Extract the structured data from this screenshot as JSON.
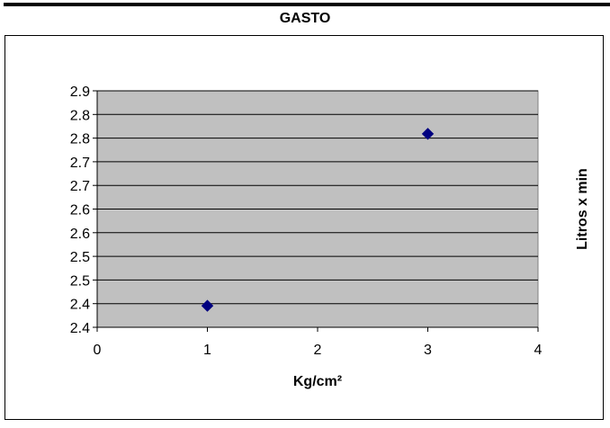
{
  "chart_data": {
    "type": "scatter",
    "title": "GASTO",
    "xlabel": "Kg/cm²",
    "ylabel": "Litros x min",
    "xlim": [
      0,
      4
    ],
    "ylim": [
      2.35,
      2.9
    ],
    "x_ticks": [
      "0",
      "1",
      "2",
      "3",
      "4"
    ],
    "y_ticks": [
      "2.4",
      "2.4",
      "2.5",
      "2.5",
      "2.6",
      "2.6",
      "2.7",
      "2.7",
      "2.8",
      "2.8",
      "2.9"
    ],
    "grid": true,
    "legend": "none",
    "series": [
      {
        "x": [
          1,
          3
        ],
        "y": [
          2.4,
          2.8
        ],
        "marker": "diamond"
      }
    ],
    "colors": {
      "plot_area": "#c0c0c0",
      "marker": "#000080",
      "grid": "#000000"
    }
  }
}
